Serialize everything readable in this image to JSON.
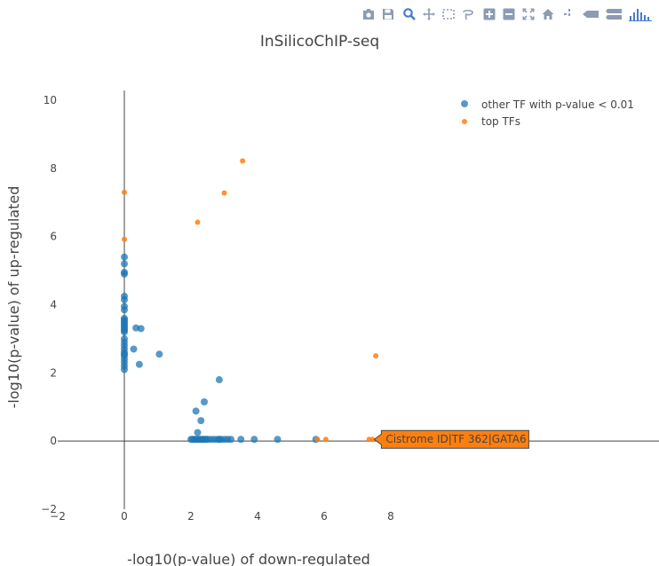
{
  "modebar": {
    "buttons": [
      {
        "name": "camera-icon",
        "title": "Download plot as a png"
      },
      {
        "name": "save-icon",
        "title": "Save"
      },
      {
        "name": "zoom-icon",
        "title": "Zoom"
      },
      {
        "name": "pan-icon",
        "title": "Pan"
      },
      {
        "name": "box-select-icon",
        "title": "Box Select"
      },
      {
        "name": "lasso-select-icon",
        "title": "Lasso Select"
      },
      {
        "name": "zoom-in-icon",
        "title": "Zoom in"
      },
      {
        "name": "zoom-out-icon",
        "title": "Zoom out"
      },
      {
        "name": "autoscale-icon",
        "title": "Autoscale"
      },
      {
        "name": "home-icon",
        "title": "Reset axes"
      },
      {
        "name": "spike-lines-icon",
        "title": "Toggle Spike Lines"
      },
      {
        "name": "hover-closest-icon",
        "title": "Show closest data on hover"
      },
      {
        "name": "hover-compare-icon",
        "title": "Compare data on hover"
      },
      {
        "name": "plotly-logo-icon",
        "title": "Produced with Plotly"
      }
    ]
  },
  "colors": {
    "series_blue": "#1f77b4",
    "series_orange": "#ff7f0e",
    "tooltip_fill": "#ff7f0e",
    "axis_line": "#444444",
    "text": "#444444"
  },
  "chart_data": {
    "type": "scatter",
    "title": "InSilicoChIP-seq",
    "xlabel": "-log10(p-value) of down-regulated",
    "ylabel": "-log10(p-value) of up-regulated",
    "xlim": [
      -2,
      8
    ],
    "ylim": [
      -2,
      10
    ],
    "xticks": [
      -2,
      0,
      2,
      4,
      6,
      8
    ],
    "yticks": [
      -2,
      0,
      2,
      4,
      6,
      8,
      10
    ],
    "grid": false,
    "zeroline": true,
    "legend_position": "top-right",
    "series": [
      {
        "name": "other TF with p-value < 0.01",
        "color": "#1f77b4",
        "points": [
          [
            0,
            5.4
          ],
          [
            0,
            5.2
          ],
          [
            0,
            4.95
          ],
          [
            0,
            4.9
          ],
          [
            0,
            4.25
          ],
          [
            0,
            4.15
          ],
          [
            0,
            3.95
          ],
          [
            0,
            3.85
          ],
          [
            0,
            3.6
          ],
          [
            0,
            3.55
          ],
          [
            0,
            3.5
          ],
          [
            0,
            3.45
          ],
          [
            0,
            3.4
          ],
          [
            0,
            3.35
          ],
          [
            0,
            3.3
          ],
          [
            0,
            3.25
          ],
          [
            0,
            3.2
          ],
          [
            0,
            3.0
          ],
          [
            0,
            2.9
          ],
          [
            0,
            2.8
          ],
          [
            0,
            2.7
          ],
          [
            0,
            2.6
          ],
          [
            0,
            2.55
          ],
          [
            0,
            2.5
          ],
          [
            0,
            2.4
          ],
          [
            0,
            2.3
          ],
          [
            0,
            2.2
          ],
          [
            0,
            2.1
          ],
          [
            0.35,
            3.32
          ],
          [
            0.5,
            3.3
          ],
          [
            0.28,
            2.7
          ],
          [
            0.45,
            2.25
          ],
          [
            1.05,
            2.55
          ],
          [
            2.85,
            1.8
          ],
          [
            2.4,
            1.15
          ],
          [
            2.15,
            0.88
          ],
          [
            2.3,
            0.6
          ],
          [
            2.2,
            0.25
          ],
          [
            2.0,
            0.05
          ],
          [
            2.05,
            0.05
          ],
          [
            2.1,
            0.05
          ],
          [
            2.15,
            0.05
          ],
          [
            2.2,
            0.05
          ],
          [
            2.25,
            0.05
          ],
          [
            2.3,
            0.05
          ],
          [
            2.35,
            0.05
          ],
          [
            2.4,
            0.05
          ],
          [
            2.45,
            0.05
          ],
          [
            2.5,
            0.05
          ],
          [
            2.6,
            0.05
          ],
          [
            2.7,
            0.05
          ],
          [
            2.8,
            0.05
          ],
          [
            2.85,
            0.05
          ],
          [
            2.9,
            0.05
          ],
          [
            3.0,
            0.05
          ],
          [
            3.1,
            0.05
          ],
          [
            3.2,
            0.05
          ],
          [
            3.5,
            0.05
          ],
          [
            3.9,
            0.05
          ],
          [
            4.6,
            0.05
          ],
          [
            5.75,
            0.05
          ]
        ]
      },
      {
        "name": "top TFs",
        "color": "#ff7f0e",
        "points": [
          [
            0,
            7.3
          ],
          [
            0,
            5.92
          ],
          [
            3.55,
            8.22
          ],
          [
            3.0,
            7.28
          ],
          [
            2.2,
            6.42
          ],
          [
            7.55,
            2.5
          ],
          [
            5.8,
            0.05
          ],
          [
            6.05,
            0.05
          ],
          [
            7.35,
            0.05
          ],
          [
            7.45,
            0.05
          ]
        ]
      }
    ],
    "hover_label": {
      "text": "Cistrome ID|TF 362|GATA6",
      "x": 7.45,
      "y": 0.05
    }
  }
}
